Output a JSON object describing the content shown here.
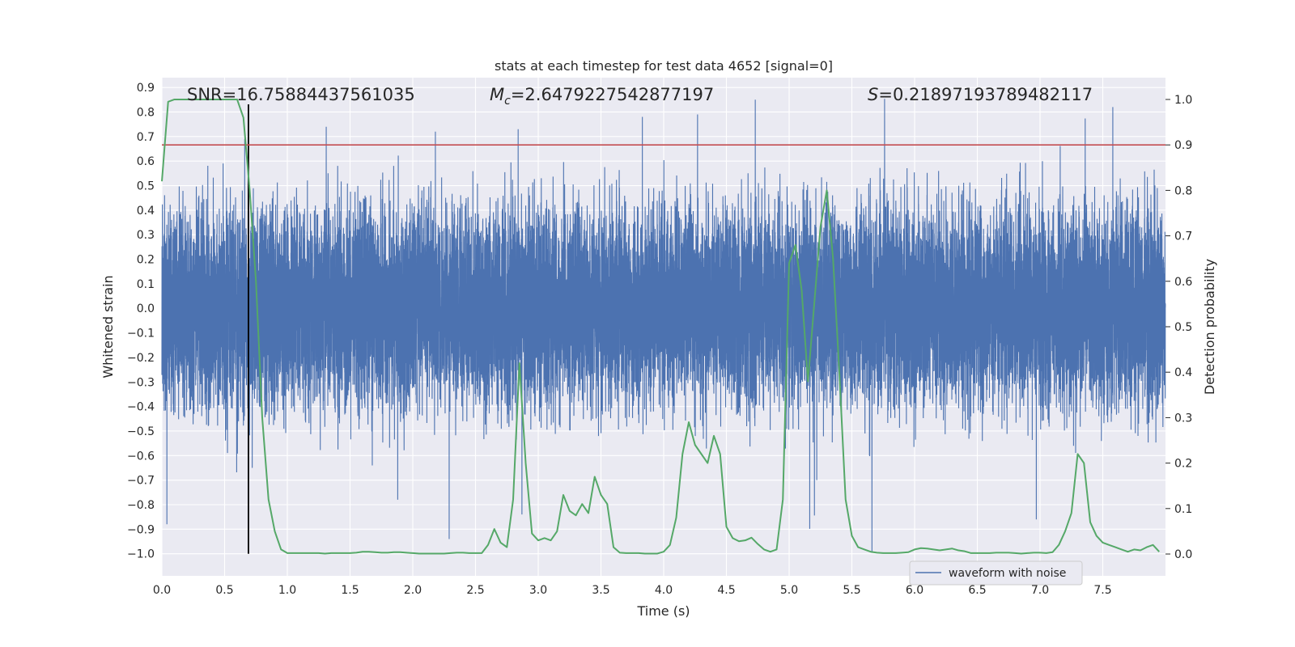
{
  "chart_data": {
    "type": "line",
    "title": "stats at each timestep for test data 4652 [signal=0]",
    "xlabel": "Time (s)",
    "ylabel_left": "Whitened strain",
    "ylabel_right": "Detection probability",
    "xlim": [
      0.0,
      8.0
    ],
    "ylim_left": [
      -1.09,
      0.94
    ],
    "ylim_right": [
      -0.048,
      1.048
    ],
    "x_ticks": [
      "0.0",
      "0.5",
      "1.0",
      "1.5",
      "2.0",
      "2.5",
      "3.0",
      "3.5",
      "4.0",
      "4.5",
      "5.0",
      "5.5",
      "6.0",
      "6.5",
      "7.0",
      "7.5"
    ],
    "y_ticks_left": [
      "0.9",
      "0.8",
      "0.7",
      "0.6",
      "0.5",
      "0.4",
      "0.3",
      "0.2",
      "0.1",
      "0.0",
      "-0.1",
      "-0.2",
      "-0.3",
      "-0.4",
      "-0.5",
      "-0.6",
      "-0.7",
      "-0.8",
      "-0.9",
      "-1.0"
    ],
    "y_ticks_right": [
      "1.0",
      "0.9",
      "0.8",
      "0.7",
      "0.6",
      "0.5",
      "0.4",
      "0.3",
      "0.2",
      "0.1",
      "0.0"
    ],
    "annotations": {
      "snr": "SNR=16.75884437561035",
      "mc_symbol": "M",
      "mc_sub": "c",
      "mc_value": "=2.6479227542877197",
      "s_symbol": "S",
      "s_value": "=0.21897193789482117"
    },
    "threshold_probability": 0.9,
    "vertical_marker_time": 0.69,
    "waveform": {
      "name": "waveform with noise",
      "color": "#4c72b0",
      "sample_rate_hz": 2048,
      "duration_s": 8.0,
      "typical_amplitude": 0.45,
      "spikes": [
        {
          "t": 0.04,
          "v": -0.88
        },
        {
          "t": 0.66,
          "v": 0.69
        },
        {
          "t": 0.72,
          "v": -0.65
        },
        {
          "t": 1.31,
          "v": 0.74
        },
        {
          "t": 1.88,
          "v": -0.78
        },
        {
          "t": 2.18,
          "v": 0.72
        },
        {
          "t": 2.29,
          "v": -0.94
        },
        {
          "t": 2.84,
          "v": 0.73
        },
        {
          "t": 2.87,
          "v": -0.84
        },
        {
          "t": 3.83,
          "v": 0.78
        },
        {
          "t": 4.27,
          "v": 0.79
        },
        {
          "t": 4.73,
          "v": 0.85
        },
        {
          "t": 5.22,
          "v": -0.7
        },
        {
          "t": 5.66,
          "v": -0.99
        },
        {
          "t": 6.97,
          "v": -0.86
        },
        {
          "t": 7.58,
          "v": 0.82
        }
      ]
    },
    "probability": {
      "name": "detection probability",
      "color": "#55a868",
      "t": [
        0.0,
        0.05,
        0.1,
        0.15,
        0.2,
        0.25,
        0.3,
        0.35,
        0.4,
        0.45,
        0.5,
        0.55,
        0.6,
        0.65,
        0.7,
        0.75,
        0.8,
        0.85,
        0.9,
        0.95,
        1.0,
        1.05,
        1.1,
        1.15,
        1.2,
        1.25,
        1.3,
        1.35,
        1.4,
        1.45,
        1.5,
        1.55,
        1.6,
        1.65,
        1.7,
        1.75,
        1.8,
        1.85,
        1.9,
        1.95,
        2.0,
        2.05,
        2.1,
        2.15,
        2.2,
        2.25,
        2.3,
        2.35,
        2.4,
        2.45,
        2.5,
        2.55,
        2.6,
        2.65,
        2.7,
        2.75,
        2.8,
        2.85,
        2.9,
        2.95,
        3.0,
        3.05,
        3.1,
        3.15,
        3.2,
        3.25,
        3.3,
        3.35,
        3.4,
        3.45,
        3.5,
        3.55,
        3.6,
        3.65,
        3.7,
        3.75,
        3.8,
        3.85,
        3.9,
        3.95,
        4.0,
        4.05,
        4.1,
        4.15,
        4.2,
        4.25,
        4.3,
        4.35,
        4.4,
        4.45,
        4.5,
        4.55,
        4.6,
        4.65,
        4.7,
        4.75,
        4.8,
        4.85,
        4.9,
        4.95,
        5.0,
        5.05,
        5.1,
        5.15,
        5.2,
        5.25,
        5.3,
        5.35,
        5.4,
        5.45,
        5.5,
        5.55,
        5.6,
        5.65,
        5.7,
        5.75,
        5.8,
        5.85,
        5.9,
        5.95,
        6.0,
        6.05,
        6.1,
        6.15,
        6.2,
        6.25,
        6.3,
        6.35,
        6.4,
        6.45,
        6.5,
        6.55,
        6.6,
        6.65,
        6.7,
        6.75,
        6.8,
        6.85,
        6.9,
        6.95,
        7.0,
        7.05,
        7.1,
        7.15,
        7.2,
        7.25,
        7.3,
        7.35,
        7.4,
        7.45,
        7.5,
        7.55,
        7.6,
        7.65,
        7.7,
        7.75,
        7.8,
        7.85,
        7.9,
        7.95
      ],
      "p": [
        0.82,
        0.995,
        1.0,
        1.0,
        1.0,
        1.0,
        1.0,
        1.0,
        1.0,
        1.0,
        1.0,
        1.0,
        1.0,
        0.96,
        0.8,
        0.6,
        0.3,
        0.12,
        0.05,
        0.01,
        0.002,
        0.002,
        0.002,
        0.002,
        0.002,
        0.002,
        0.001,
        0.002,
        0.002,
        0.002,
        0.002,
        0.003,
        0.005,
        0.005,
        0.004,
        0.003,
        0.003,
        0.004,
        0.004,
        0.003,
        0.002,
        0.001,
        0.001,
        0.001,
        0.001,
        0.001,
        0.002,
        0.003,
        0.003,
        0.002,
        0.002,
        0.002,
        0.02,
        0.055,
        0.025,
        0.015,
        0.12,
        0.42,
        0.2,
        0.045,
        0.03,
        0.035,
        0.03,
        0.05,
        0.13,
        0.095,
        0.085,
        0.11,
        0.09,
        0.17,
        0.13,
        0.11,
        0.015,
        0.003,
        0.002,
        0.002,
        0.002,
        0.001,
        0.001,
        0.001,
        0.005,
        0.02,
        0.08,
        0.22,
        0.29,
        0.24,
        0.22,
        0.2,
        0.26,
        0.22,
        0.06,
        0.035,
        0.028,
        0.03,
        0.036,
        0.022,
        0.01,
        0.005,
        0.01,
        0.12,
        0.64,
        0.68,
        0.58,
        0.38,
        0.55,
        0.72,
        0.8,
        0.65,
        0.4,
        0.12,
        0.04,
        0.015,
        0.01,
        0.005,
        0.003,
        0.002,
        0.002,
        0.002,
        0.003,
        0.004,
        0.01,
        0.013,
        0.012,
        0.01,
        0.008,
        0.01,
        0.012,
        0.008,
        0.006,
        0.002,
        0.002,
        0.002,
        0.002,
        0.003,
        0.003,
        0.003,
        0.002,
        0.001,
        0.002,
        0.003,
        0.003,
        0.002,
        0.004,
        0.02,
        0.05,
        0.09,
        0.22,
        0.2,
        0.07,
        0.04,
        0.025,
        0.02,
        0.015,
        0.01,
        0.005,
        0.01,
        0.008,
        0.015,
        0.02,
        0.005
      ]
    },
    "legend": {
      "position": "lower-right",
      "entries": [
        "waveform with noise"
      ]
    },
    "colors": {
      "plot_background": "#eaeaf2",
      "grid": "#ffffff",
      "threshold_line": "#c44e52",
      "marker_line": "#000000"
    }
  }
}
